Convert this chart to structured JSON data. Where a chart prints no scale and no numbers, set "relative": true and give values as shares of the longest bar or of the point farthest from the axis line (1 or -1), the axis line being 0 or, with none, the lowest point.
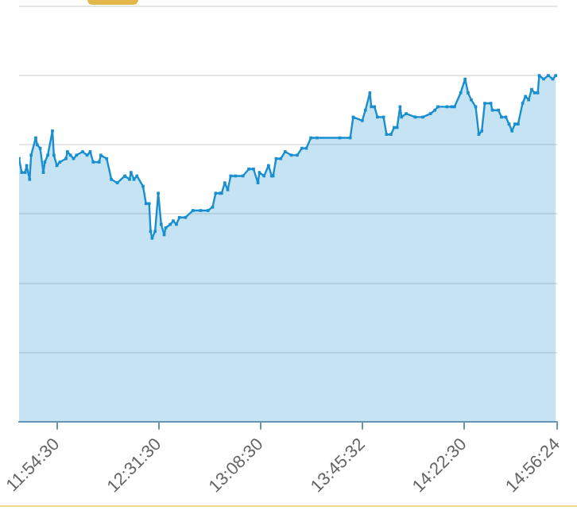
{
  "chart_data": {
    "type": "area",
    "relative": true,
    "marker": "square",
    "grid": "y",
    "legend": false,
    "xlim": [
      11.679,
      14.94
    ],
    "xticks": [
      {
        "value": 11.9083,
        "label": "11:54:30"
      },
      {
        "value": 12.525,
        "label": "12:31:30"
      },
      {
        "value": 13.1417,
        "label": "13:08:30"
      },
      {
        "value": 13.7589,
        "label": "13:45:32"
      },
      {
        "value": 14.375,
        "label": "14:22:30"
      },
      {
        "value": 14.94,
        "label": "14:56:24"
      }
    ],
    "series": [
      {
        "color": "#1a8fcf",
        "x": [
          11.679,
          11.695,
          11.716,
          11.725,
          11.743,
          11.752,
          11.78,
          11.789,
          11.807,
          11.826,
          11.835,
          11.853,
          11.881,
          11.89,
          11.908,
          11.926,
          11.963,
          11.972,
          11.99,
          12.009,
          12.027,
          12.064,
          12.091,
          12.11,
          12.128,
          12.164,
          12.174,
          12.21,
          12.238,
          12.274,
          12.32,
          12.348,
          12.357,
          12.375,
          12.393,
          12.43,
          12.448,
          12.467,
          12.476,
          12.485,
          12.503,
          12.522,
          12.54,
          12.558,
          12.567,
          12.595,
          12.613,
          12.632,
          12.65,
          12.687,
          12.732,
          12.778,
          12.824,
          12.851,
          12.87,
          12.897,
          12.906,
          12.925,
          12.943,
          12.961,
          12.989,
          13.035,
          13.071,
          13.099,
          13.126,
          13.135,
          13.163,
          13.19,
          13.209,
          13.218,
          13.236,
          13.264,
          13.291,
          13.328,
          13.364,
          13.392,
          13.419,
          13.447,
          13.484,
          13.621,
          13.685,
          13.703,
          13.758,
          13.777,
          13.804,
          13.813,
          13.832,
          13.85,
          13.887,
          13.905,
          13.932,
          13.951,
          13.969,
          13.987,
          13.996,
          14.024,
          14.079,
          14.125,
          14.171,
          14.198,
          14.216,
          14.271,
          14.299,
          14.317,
          14.354,
          14.381,
          14.399,
          14.418,
          14.445,
          14.464,
          14.482,
          14.5,
          14.537,
          14.546,
          14.583,
          14.601,
          14.628,
          14.647,
          14.665,
          14.683,
          14.702,
          14.729,
          14.747,
          14.766,
          14.784,
          14.802,
          14.821,
          14.83,
          14.857,
          14.885,
          14.912,
          14.93
        ],
        "values": [
          0.76,
          0.72,
          0.72,
          0.74,
          0.7,
          0.77,
          0.82,
          0.8,
          0.79,
          0.72,
          0.75,
          0.77,
          0.84,
          0.77,
          0.74,
          0.75,
          0.76,
          0.78,
          0.77,
          0.76,
          0.77,
          0.78,
          0.77,
          0.78,
          0.75,
          0.75,
          0.77,
          0.76,
          0.7,
          0.69,
          0.71,
          0.7,
          0.72,
          0.7,
          0.71,
          0.68,
          0.63,
          0.63,
          0.55,
          0.53,
          0.55,
          0.66,
          0.57,
          0.54,
          0.56,
          0.57,
          0.58,
          0.57,
          0.59,
          0.59,
          0.61,
          0.61,
          0.61,
          0.62,
          0.66,
          0.66,
          0.66,
          0.69,
          0.67,
          0.71,
          0.71,
          0.71,
          0.73,
          0.73,
          0.69,
          0.72,
          0.71,
          0.74,
          0.71,
          0.71,
          0.76,
          0.76,
          0.78,
          0.77,
          0.77,
          0.79,
          0.79,
          0.82,
          0.82,
          0.82,
          0.82,
          0.88,
          0.87,
          0.9,
          0.95,
          0.91,
          0.91,
          0.88,
          0.88,
          0.83,
          0.83,
          0.85,
          0.85,
          0.91,
          0.88,
          0.89,
          0.88,
          0.88,
          0.89,
          0.9,
          0.91,
          0.91,
          0.91,
          0.91,
          0.95,
          0.99,
          0.95,
          0.93,
          0.91,
          0.83,
          0.84,
          0.92,
          0.92,
          0.9,
          0.9,
          0.88,
          0.88,
          0.86,
          0.84,
          0.86,
          0.86,
          0.92,
          0.94,
          0.93,
          0.96,
          0.95,
          0.95,
          1,
          0.99,
          1,
          0.99,
          1
        ]
      }
    ]
  }
}
